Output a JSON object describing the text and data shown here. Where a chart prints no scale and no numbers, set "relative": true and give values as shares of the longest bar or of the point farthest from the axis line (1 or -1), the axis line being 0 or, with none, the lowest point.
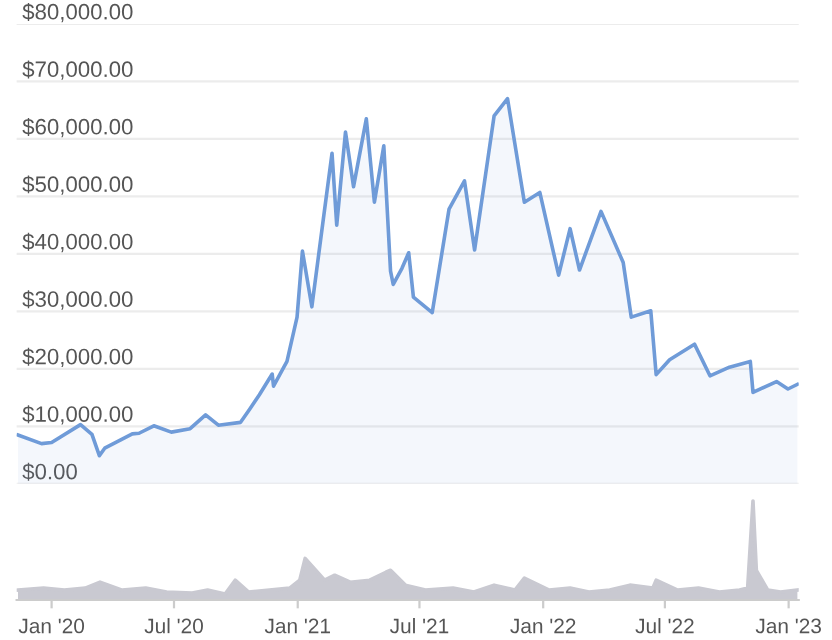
{
  "chart_data": [
    {
      "type": "area",
      "tick_labels": "y",
      "grid": "y",
      "line_style": "solid",
      "marker": "none",
      "xlim": [
        "2019-11-10",
        "2023-01-16"
      ],
      "ylim": [
        0,
        80000
      ],
      "yticks": [
        {
          "value": 0,
          "label": "$0.00"
        },
        {
          "value": 10000,
          "label": "$10,000.00"
        },
        {
          "value": 20000,
          "label": "$20,000.00"
        },
        {
          "value": 30000,
          "label": "$30,000.00"
        },
        {
          "value": 40000,
          "label": "$40,000.00"
        },
        {
          "value": 50000,
          "label": "$50,000.00"
        },
        {
          "value": 60000,
          "label": "$60,000.00"
        },
        {
          "value": 70000,
          "label": "$70,000.00"
        },
        {
          "value": 80000,
          "label": "$80,000.00"
        }
      ],
      "x": [
        "2019-11-12",
        "2019-12-17",
        "2020-01-01",
        "2020-02-13",
        "2020-03-01",
        "2020-03-12",
        "2020-03-20",
        "2020-04-30",
        "2020-05-10",
        "2020-06-01",
        "2020-06-27",
        "2020-07-25",
        "2020-08-17",
        "2020-09-05",
        "2020-10-08",
        "2020-10-21",
        "2020-11-05",
        "2020-11-24",
        "2020-11-26",
        "2020-12-16",
        "2020-12-31",
        "2021-01-08",
        "2021-01-22",
        "2021-02-08",
        "2021-02-21",
        "2021-02-28",
        "2021-03-13",
        "2021-03-25",
        "2021-04-13",
        "2021-04-25",
        "2021-05-09",
        "2021-05-19",
        "2021-05-23",
        "2021-06-05",
        "2021-06-15",
        "2021-06-22",
        "2021-07-20",
        "2021-08-14",
        "2021-09-06",
        "2021-09-21",
        "2021-10-20",
        "2021-11-09",
        "2021-12-04",
        "2021-12-27",
        "2022-01-24",
        "2022-02-10",
        "2022-02-24",
        "2022-03-28",
        "2022-04-30",
        "2022-05-12",
        "2022-06-10",
        "2022-06-18",
        "2022-07-08",
        "2022-08-14",
        "2022-09-06",
        "2022-10-05",
        "2022-11-05",
        "2022-11-09",
        "2022-12-14",
        "2022-12-31",
        "2023-01-14"
      ],
      "series": [
        {
          "color": "#6f9bd8",
          "values": [
            8500,
            7000,
            7200,
            10300,
            8600,
            4900,
            6200,
            8700,
            8800,
            10100,
            9000,
            9600,
            12000,
            10200,
            10700,
            12900,
            15500,
            19100,
            17000,
            21300,
            29000,
            40500,
            30800,
            46000,
            57500,
            45000,
            61200,
            51700,
            63500,
            49000,
            58800,
            37000,
            34700,
            37500,
            40200,
            32500,
            29800,
            47800,
            52700,
            40700,
            64000,
            67000,
            49000,
            50700,
            36300,
            44400,
            37200,
            47400,
            38500,
            29000,
            30100,
            19000,
            21600,
            24300,
            18800,
            20300,
            21300,
            15900,
            17800,
            16500,
            17300
          ]
        }
      ]
    },
    {
      "type": "area",
      "relative": true,
      "tick_labels": "x",
      "grid": false,
      "marker": "none",
      "xlim": [
        "2019-11-10",
        "2023-01-16"
      ],
      "xticks": [
        {
          "value": "2020-01-01",
          "label": "Jan '20"
        },
        {
          "value": "2020-07-01",
          "label": "Jul '20"
        },
        {
          "value": "2021-01-01",
          "label": "Jan '21"
        },
        {
          "value": "2021-07-01",
          "label": "Jul '21"
        },
        {
          "value": "2022-01-01",
          "label": "Jan '22"
        },
        {
          "value": "2022-07-01",
          "label": "Jul '22"
        },
        {
          "value": "2023-01-01",
          "label": "Jan '23"
        }
      ],
      "x": [
        "2019-11-12",
        "2019-12-20",
        "2020-01-20",
        "2020-02-20",
        "2020-03-13",
        "2020-04-15",
        "2020-05-20",
        "2020-06-20",
        "2020-07-28",
        "2020-08-20",
        "2020-09-15",
        "2020-09-30",
        "2020-10-20",
        "2020-11-20",
        "2020-12-20",
        "2021-01-04",
        "2021-01-12",
        "2021-02-10",
        "2021-02-25",
        "2021-03-20",
        "2021-04-18",
        "2021-05-12",
        "2021-05-19",
        "2021-06-10",
        "2021-07-10",
        "2021-08-20",
        "2021-09-20",
        "2021-10-20",
        "2021-11-20",
        "2021-12-04",
        "2022-01-10",
        "2022-02-10",
        "2022-03-10",
        "2022-04-10",
        "2022-05-10",
        "2022-06-13",
        "2022-06-18",
        "2022-07-20",
        "2022-08-20",
        "2022-09-20",
        "2022-10-20",
        "2022-11-01",
        "2022-11-09",
        "2022-11-14",
        "2022-12-01",
        "2022-12-20",
        "2023-01-14"
      ],
      "series": [
        {
          "color": "#c9c9d1",
          "values": [
            0.1,
            0.12,
            0.1,
            0.12,
            0.18,
            0.1,
            0.12,
            0.08,
            0.07,
            0.1,
            0.06,
            0.2,
            0.08,
            0.1,
            0.12,
            0.2,
            0.42,
            0.2,
            0.25,
            0.18,
            0.2,
            0.28,
            0.3,
            0.15,
            0.1,
            0.12,
            0.08,
            0.15,
            0.1,
            0.22,
            0.1,
            0.12,
            0.08,
            0.1,
            0.15,
            0.12,
            0.2,
            0.1,
            0.12,
            0.08,
            0.1,
            0.12,
            1.0,
            0.3,
            0.1,
            0.08,
            0.1
          ]
        }
      ]
    }
  ]
}
